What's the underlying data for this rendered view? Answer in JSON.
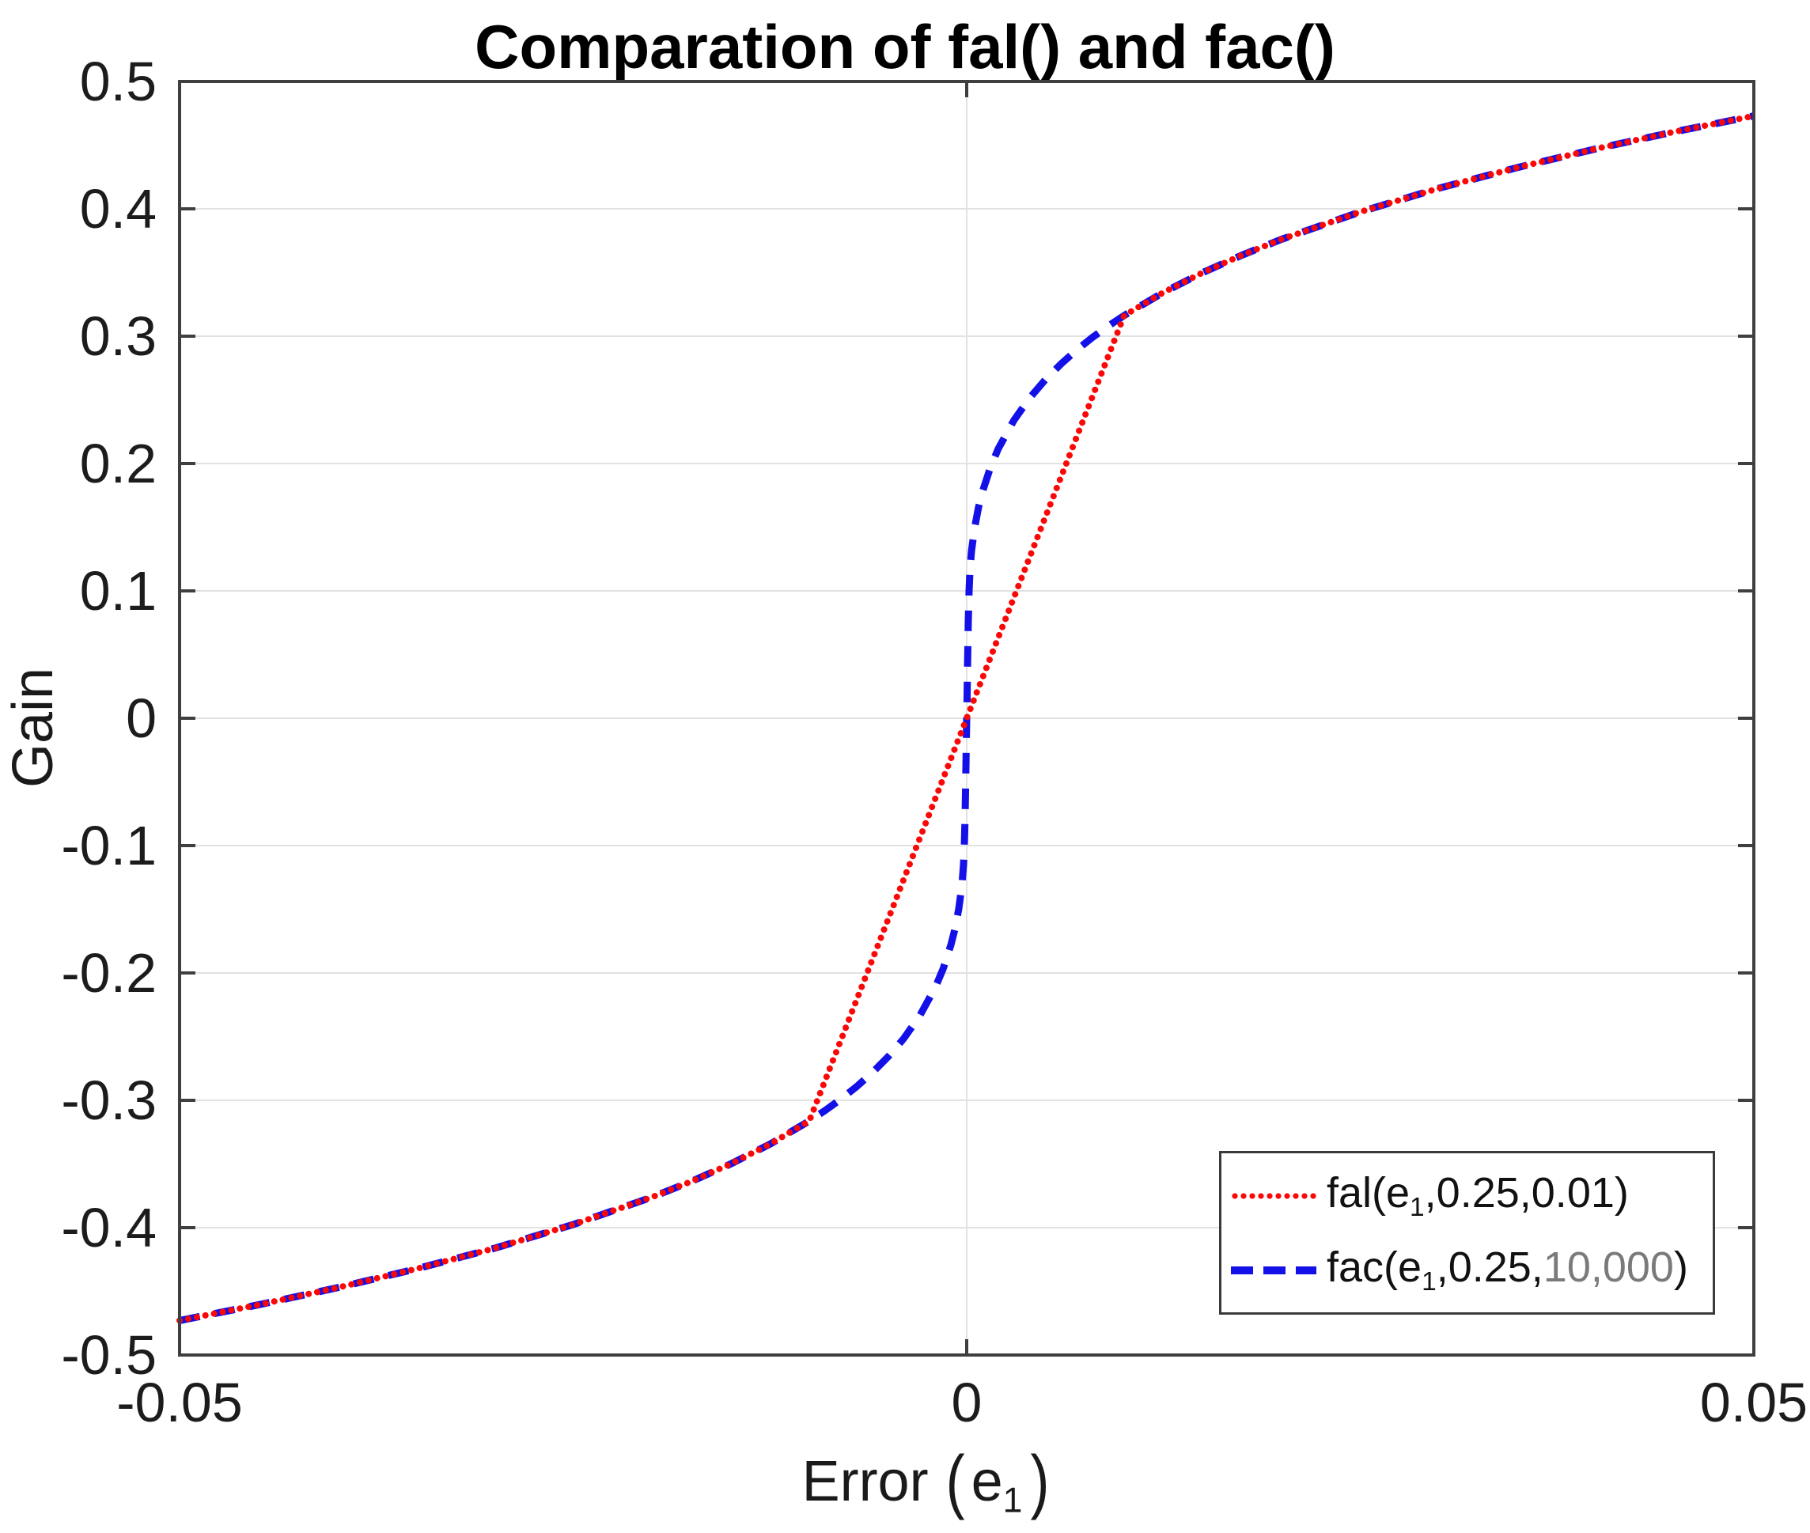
{
  "chart_data": {
    "type": "line",
    "title": "Comparation of fal() and fac()",
    "ylabel": "Gain",
    "xlabel": {
      "text": "Error",
      "open": "(",
      "var": "e",
      "sub": "1",
      "close": ")"
    },
    "xlim": [
      -0.05,
      0.05
    ],
    "ylim": [
      -0.5,
      0.5
    ],
    "grid": true,
    "grid_color": "#e2e2e2",
    "axis_color": "#3f3f3f",
    "tick_label_color": "#1c1c1c",
    "legend_position": "bottom-right",
    "xticks": [
      {
        "v": -0.05,
        "label": "-0.05"
      },
      {
        "v": 0,
        "label": "0"
      },
      {
        "v": 0.05,
        "label": "0.05"
      }
    ],
    "yticks": [
      {
        "v": 0.5,
        "label": "0.5"
      },
      {
        "v": 0.4,
        "label": "0.4"
      },
      {
        "v": 0.3,
        "label": "0.3"
      },
      {
        "v": 0.2,
        "label": "0.2"
      },
      {
        "v": 0.1,
        "label": "0.1"
      },
      {
        "v": 0,
        "label": "0"
      },
      {
        "v": -0.1,
        "label": "-0.1"
      },
      {
        "v": -0.2,
        "label": "-0.2"
      },
      {
        "v": -0.3,
        "label": "-0.3"
      },
      {
        "v": -0.4,
        "label": "-0.4"
      },
      {
        "v": -0.5,
        "label": "-0.5"
      }
    ],
    "legend": {
      "entries": [
        {
          "pre": "fal(e",
          "sub": "1",
          "post": ",0.25,0.01",
          "muted": "",
          "close": ")",
          "color": "#fa0808",
          "style": "dotted"
        },
        {
          "pre": "fac(e",
          "sub": "1",
          "post": ",0.25,",
          "muted": "10,000",
          "close": ")",
          "color": "#1410e8",
          "style": "dashed"
        }
      ]
    },
    "series": [
      {
        "id": "fac",
        "name": "fac(e1,0.25,10,000)",
        "color": "#1410e8",
        "style": "dashed",
        "points": [
          [
            -0.05,
            -0.4729
          ],
          [
            -0.045,
            -0.4606
          ],
          [
            -0.04,
            -0.4472
          ],
          [
            -0.035,
            -0.4325
          ],
          [
            -0.03,
            -0.4162
          ],
          [
            -0.025,
            -0.3976
          ],
          [
            -0.02,
            -0.3761
          ],
          [
            -0.0175,
            -0.3637
          ],
          [
            -0.015,
            -0.35
          ],
          [
            -0.0125,
            -0.3344
          ],
          [
            -0.01,
            -0.3162
          ],
          [
            -0.009,
            -0.308
          ],
          [
            -0.008,
            -0.2991
          ],
          [
            -0.007,
            -0.2893
          ],
          [
            -0.006,
            -0.2783
          ],
          [
            -0.005,
            -0.2659
          ],
          [
            -0.004,
            -0.2515
          ],
          [
            -0.003,
            -0.234
          ],
          [
            -0.002,
            -0.2115
          ],
          [
            -0.0015,
            -0.1968
          ],
          [
            -0.001,
            -0.1778
          ],
          [
            -0.00075,
            -0.1655
          ],
          [
            -0.0005,
            -0.1495
          ],
          [
            -0.0003,
            -0.131
          ],
          [
            -0.0002,
            -0.1146
          ],
          [
            -0.00015,
            -0.1002
          ],
          [
            -0.0001,
            -0.0762
          ],
          [
            -5e-05,
            -0.0389
          ],
          [
            -2.5e-05,
            -0.0173
          ],
          [
            0,
            0
          ],
          [
            2.5e-05,
            0.0173
          ],
          [
            5e-05,
            0.0389
          ],
          [
            0.0001,
            0.0762
          ],
          [
            0.00015,
            0.1002
          ],
          [
            0.0002,
            0.1146
          ],
          [
            0.0003,
            0.131
          ],
          [
            0.0005,
            0.1495
          ],
          [
            0.00075,
            0.1655
          ],
          [
            0.001,
            0.1778
          ],
          [
            0.0015,
            0.1968
          ],
          [
            0.002,
            0.2115
          ],
          [
            0.003,
            0.234
          ],
          [
            0.004,
            0.2515
          ],
          [
            0.005,
            0.2659
          ],
          [
            0.006,
            0.2783
          ],
          [
            0.007,
            0.2893
          ],
          [
            0.008,
            0.2991
          ],
          [
            0.009,
            0.308
          ],
          [
            0.01,
            0.3162
          ],
          [
            0.0125,
            0.3344
          ],
          [
            0.015,
            0.35
          ],
          [
            0.0175,
            0.3637
          ],
          [
            0.02,
            0.3761
          ],
          [
            0.025,
            0.3976
          ],
          [
            0.03,
            0.4162
          ],
          [
            0.035,
            0.4325
          ],
          [
            0.04,
            0.4472
          ],
          [
            0.045,
            0.4606
          ],
          [
            0.05,
            0.4729
          ]
        ]
      },
      {
        "id": "fal",
        "name": "fal(e1,0.25,0.01)",
        "color": "#fa0808",
        "style": "dotted",
        "points": [
          [
            -0.05,
            -0.4729
          ],
          [
            -0.045,
            -0.4606
          ],
          [
            -0.04,
            -0.4472
          ],
          [
            -0.035,
            -0.4325
          ],
          [
            -0.03,
            -0.4162
          ],
          [
            -0.025,
            -0.3976
          ],
          [
            -0.02,
            -0.3761
          ],
          [
            -0.0175,
            -0.3637
          ],
          [
            -0.015,
            -0.35
          ],
          [
            -0.0125,
            -0.3344
          ],
          [
            -0.01,
            -0.3162
          ],
          [
            -0.008,
            -0.253
          ],
          [
            -0.006,
            -0.1897
          ],
          [
            -0.004,
            -0.1265
          ],
          [
            -0.002,
            -0.0632
          ],
          [
            0,
            0
          ],
          [
            0.002,
            0.0632
          ],
          [
            0.004,
            0.1265
          ],
          [
            0.006,
            0.1897
          ],
          [
            0.008,
            0.253
          ],
          [
            0.01,
            0.3162
          ],
          [
            0.0125,
            0.3344
          ],
          [
            0.015,
            0.35
          ],
          [
            0.0175,
            0.3637
          ],
          [
            0.02,
            0.3761
          ],
          [
            0.025,
            0.3976
          ],
          [
            0.03,
            0.4162
          ],
          [
            0.035,
            0.4325
          ],
          [
            0.04,
            0.4472
          ],
          [
            0.045,
            0.4606
          ],
          [
            0.05,
            0.4729
          ]
        ]
      }
    ]
  }
}
